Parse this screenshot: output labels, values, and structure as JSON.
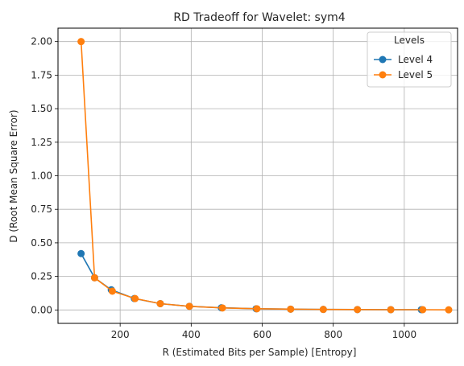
{
  "chart_data": {
    "type": "line",
    "title": "RD Tradeoff for Wavelet: sym4",
    "xlabel": "R (Estimated Bits per Sample) [Entropy]",
    "ylabel": "D (Root Mean Square Error)",
    "xlim": [
      25,
      1150
    ],
    "ylim": [
      -0.1,
      2.1
    ],
    "xticks": [
      200,
      400,
      600,
      800,
      1000
    ],
    "yticks": [
      0.0,
      0.25,
      0.5,
      0.75,
      1.0,
      1.25,
      1.5,
      1.75,
      2.0
    ],
    "xtick_labels": [
      "200",
      "400",
      "600",
      "800",
      "1000"
    ],
    "ytick_labels": [
      "0.00",
      "0.25",
      "0.50",
      "0.75",
      "1.00",
      "1.25",
      "1.50",
      "1.75",
      "2.00"
    ],
    "grid": true,
    "legend": {
      "title": "Levels",
      "placement": "top-right"
    },
    "series": [
      {
        "name": "Level 4",
        "color": "#1f77b4",
        "marker": "circle",
        "x": [
          90,
          128,
          175,
          240,
          313,
          395,
          485,
          583,
          680,
          772,
          868,
          962,
          1048
        ],
        "y": [
          0.42,
          0.24,
          0.15,
          0.085,
          0.047,
          0.027,
          0.016,
          0.009,
          0.006,
          0.004,
          0.003,
          0.002,
          0.002
        ]
      },
      {
        "name": "Level 5",
        "color": "#ff7f0e",
        "marker": "circle",
        "x": [
          90,
          128,
          178,
          242,
          313,
          395,
          488,
          585,
          680,
          772,
          868,
          962,
          1052,
          1125
        ],
        "y": [
          2.0,
          0.24,
          0.14,
          0.085,
          0.047,
          0.027,
          0.015,
          0.009,
          0.006,
          0.004,
          0.003,
          0.002,
          0.002,
          0.001
        ]
      }
    ]
  }
}
